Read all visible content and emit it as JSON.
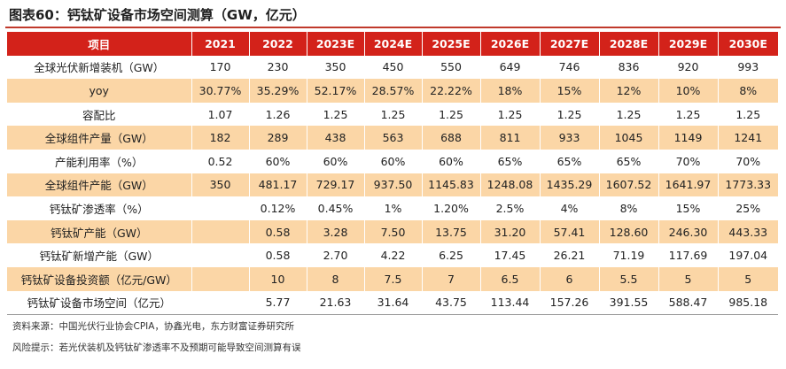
{
  "title": "图表60：钙钛矿设备市场空间测算（GW，亿元）",
  "table": {
    "headers": [
      "项目",
      "2021",
      "2022",
      "2023E",
      "2024E",
      "2025E",
      "2026E",
      "2027E",
      "2028E",
      "2029E",
      "2030E"
    ],
    "rows": [
      [
        "全球光伏新增装机（GW）",
        "170",
        "230",
        "350",
        "450",
        "550",
        "649",
        "746",
        "836",
        "920",
        "993"
      ],
      [
        "yoy",
        "30.77%",
        "35.29%",
        "52.17%",
        "28.57%",
        "22.22%",
        "18%",
        "15%",
        "12%",
        "10%",
        "8%"
      ],
      [
        "容配比",
        "1.07",
        "1.26",
        "1.25",
        "1.25",
        "1.25",
        "1.25",
        "1.25",
        "1.25",
        "1.25",
        "1.25"
      ],
      [
        "全球组件产量（GW）",
        "182",
        "289",
        "438",
        "563",
        "688",
        "811",
        "933",
        "1045",
        "1149",
        "1241"
      ],
      [
        "产能利用率（%）",
        "0.52",
        "60%",
        "60%",
        "60%",
        "60%",
        "65%",
        "65%",
        "65%",
        "70%",
        "70%"
      ],
      [
        "全球组件产能（GW）",
        "350",
        "481.17",
        "729.17",
        "937.50",
        "1145.83",
        "1248.08",
        "1435.29",
        "1607.52",
        "1641.97",
        "1773.33"
      ],
      [
        "钙钛矿渗透率（%）",
        "",
        "0.12%",
        "0.45%",
        "1%",
        "1.20%",
        "2.5%",
        "4%",
        "8%",
        "15%",
        "25%"
      ],
      [
        "钙钛矿产能（GW）",
        "",
        "0.58",
        "3.28",
        "7.50",
        "13.75",
        "31.20",
        "57.41",
        "128.60",
        "246.30",
        "443.33"
      ],
      [
        "钙钛矿新增产能（GW）",
        "",
        "0.58",
        "2.70",
        "4.22",
        "6.25",
        "17.45",
        "26.21",
        "71.19",
        "117.69",
        "197.04"
      ],
      [
        "钙钛矿设备投资额（亿元/GW）",
        "",
        "10",
        "8",
        "7.5",
        "7",
        "6.5",
        "6",
        "5.5",
        "5",
        "5"
      ],
      [
        "钙钛矿设备市场空间（亿元）",
        "",
        "5.77",
        "21.63",
        "31.64",
        "43.75",
        "113.44",
        "157.26",
        "391.55",
        "588.47",
        "985.18"
      ]
    ]
  },
  "notes": {
    "source": "资料来源：中国光伏行业协会CPIA，协鑫光电，东方财富证券研究所",
    "risk": "风险提示：若光伏装机及钙钛矿渗透率不及预期可能导致空间测算有误"
  },
  "colors": {
    "header_bg": "#d3221a",
    "shade_row": "#fbd6a6",
    "title_rule": "#c0392b"
  }
}
